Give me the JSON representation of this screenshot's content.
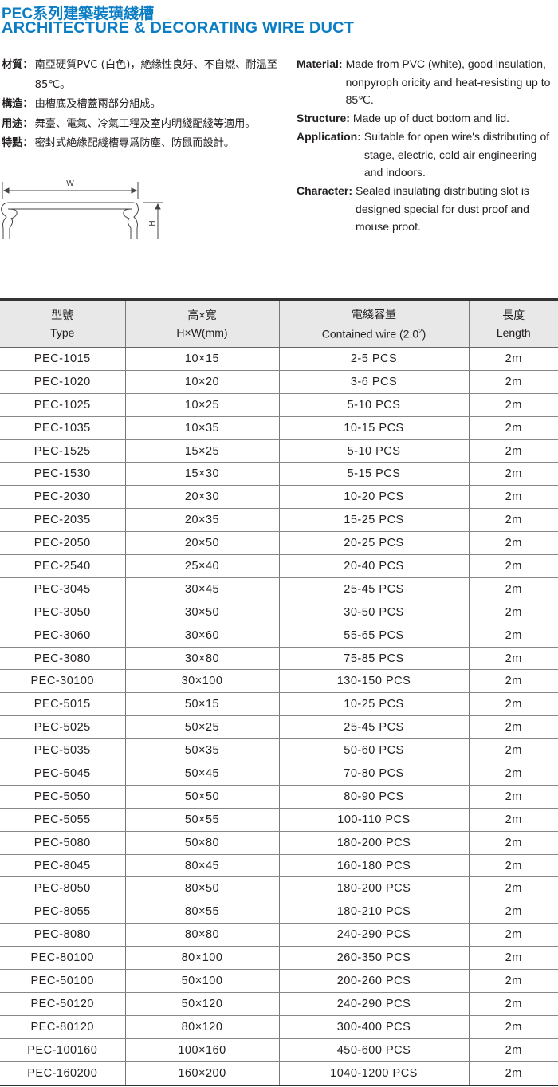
{
  "title": {
    "zh": "PEC系列建築裝璜綫槽",
    "en": "ARCHITECTURE & DECORATING WIRE DUCT"
  },
  "zh_specs": [
    {
      "label": "材質：",
      "text": "南亞硬質PVC (白色)，絶緣性良好、不自燃、耐温至85℃。"
    },
    {
      "label": "構造：",
      "text": "由槽底及槽蓋兩部分組成。"
    },
    {
      "label": "用途：",
      "text": "舞臺、電氣、冷氣工程及室内明綫配綫等適用。"
    },
    {
      "label": "特點：",
      "text": "密封式絶緣配綫槽專爲防塵、防鼠而設計。"
    }
  ],
  "en_specs": [
    {
      "label": "Material:",
      "text": "Made from PVC (white), good insulation, nonpyroph oricity and heat-resisting up to 85℃."
    },
    {
      "label": "Structure:",
      "text": "Made up of duct bottom and lid."
    },
    {
      "label": "Application:",
      "text": "Suitable for open wire's distributing of stage, electric, cold air engineering and indoors."
    },
    {
      "label": "Character:",
      "text": "Sealed insulating distributing slot is designed special for dust proof and mouse proof."
    }
  ],
  "diagram": {
    "w_label": "W",
    "h_label": "H"
  },
  "table": {
    "headers": [
      {
        "zh": "型號",
        "en": "Type"
      },
      {
        "zh": "高×寬",
        "en": "H×W(mm)"
      },
      {
        "zh": "電綫容量",
        "en": "Contained wire (2.0",
        "sup": "2",
        "en_end": ")"
      },
      {
        "zh": "長度",
        "en": "Length"
      }
    ],
    "rows": [
      [
        "PEC-1015",
        "10×15",
        "2-5 PCS",
        "2m"
      ],
      [
        "PEC-1020",
        "10×20",
        "3-6 PCS",
        "2m"
      ],
      [
        "PEC-1025",
        "10×25",
        "5-10 PCS",
        "2m"
      ],
      [
        "PEC-1035",
        "10×35",
        "10-15 PCS",
        "2m"
      ],
      [
        "PEC-1525",
        "15×25",
        "5-10 PCS",
        "2m"
      ],
      [
        "PEC-1530",
        "15×30",
        "5-15 PCS",
        "2m"
      ],
      [
        "PEC-2030",
        "20×30",
        "10-20 PCS",
        "2m"
      ],
      [
        "PEC-2035",
        "20×35",
        "15-25 PCS",
        "2m"
      ],
      [
        "PEC-2050",
        "20×50",
        "20-25 PCS",
        "2m"
      ],
      [
        "PEC-2540",
        "25×40",
        "20-40 PCS",
        "2m"
      ],
      [
        "PEC-3045",
        "30×45",
        "25-45 PCS",
        "2m"
      ],
      [
        "PEC-3050",
        "30×50",
        "30-50 PCS",
        "2m"
      ],
      [
        "PEC-3060",
        "30×60",
        "55-65 PCS",
        "2m"
      ],
      [
        "PEC-3080",
        "30×80",
        "75-85 PCS",
        "2m"
      ],
      [
        "PEC-30100",
        "30×100",
        "130-150 PCS",
        "2m"
      ],
      [
        "PEC-5015",
        "50×15",
        "10-25 PCS",
        "2m"
      ],
      [
        "PEC-5025",
        "50×25",
        "25-45 PCS",
        "2m"
      ],
      [
        "PEC-5035",
        "50×35",
        "50-60 PCS",
        "2m"
      ],
      [
        "PEC-5045",
        "50×45",
        "70-80 PCS",
        "2m"
      ],
      [
        "PEC-5050",
        "50×50",
        "80-90 PCS",
        "2m"
      ],
      [
        "PEC-5055",
        "50×55",
        "100-110 PCS",
        "2m"
      ],
      [
        "PEC-5080",
        "50×80",
        "180-200 PCS",
        "2m"
      ],
      [
        "PEC-8045",
        "80×45",
        "160-180 PCS",
        "2m"
      ],
      [
        "PEC-8050",
        "80×50",
        "180-200 PCS",
        "2m"
      ],
      [
        "PEC-8055",
        "80×55",
        "180-210 PCS",
        "2m"
      ],
      [
        "PEC-8080",
        "80×80",
        "240-290 PCS",
        "2m"
      ],
      [
        "PEC-80100",
        "80×100",
        "260-350 PCS",
        "2m"
      ],
      [
        "PEC-50100",
        "50×100",
        "200-260 PCS",
        "2m"
      ],
      [
        "PEC-50120",
        "50×120",
        "240-290 PCS",
        "2m"
      ],
      [
        "PEC-80120",
        "80×120",
        "300-400 PCS",
        "2m"
      ],
      [
        "PEC-100160",
        "100×160",
        "450-600 PCS",
        "2m"
      ],
      [
        "PEC-160200",
        "160×200",
        "1040-1200 PCS",
        "2m"
      ]
    ]
  },
  "colors": {
    "title": "#0a7dc4",
    "header_bg": "#e8e8e8"
  }
}
